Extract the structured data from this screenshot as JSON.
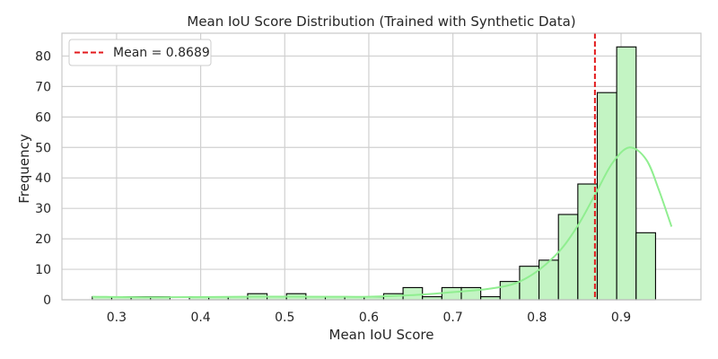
{
  "chart_data": {
    "type": "bar",
    "title": "Mean IoU Score Distribution (Trained with Synthetic Data)",
    "xlabel": "Mean IoU Score",
    "ylabel": "Frequency",
    "xlim": [
      0.235,
      0.995
    ],
    "ylim": [
      0,
      87.5
    ],
    "x_ticks": [
      0.3,
      0.4,
      0.5,
      0.6,
      0.7,
      0.8,
      0.9
    ],
    "y_ticks": [
      0,
      10,
      20,
      30,
      40,
      50,
      60,
      70,
      80
    ],
    "grid": true,
    "legend_position": "top-left",
    "bins": {
      "start": 0.2711,
      "width": 0.0231,
      "counts": [
        1,
        1,
        1,
        1,
        0,
        1,
        1,
        1,
        2,
        1,
        2,
        1,
        1,
        1,
        1,
        2,
        4,
        1,
        4,
        4,
        1,
        6,
        11,
        13,
        28,
        38,
        68,
        83,
        22
      ]
    },
    "kde": {
      "x": [
        0.271,
        0.35,
        0.45,
        0.55,
        0.6,
        0.65,
        0.7,
        0.74,
        0.77,
        0.79,
        0.81,
        0.83,
        0.85,
        0.87,
        0.89,
        0.91,
        0.93,
        0.945,
        0.96
      ],
      "y": [
        1,
        0.8,
        1,
        1,
        1,
        1.5,
        2.5,
        3.5,
        5,
        7.5,
        11.5,
        17,
        25,
        35,
        45,
        50,
        46,
        36,
        24
      ]
    },
    "mean_line": {
      "value": 0.8689,
      "label": "Mean = 0.8689"
    },
    "colors": {
      "bar_fill": "#c3f4c3",
      "bar_edge": "#000000",
      "kde_line": "#90ee90",
      "mean_line": "#e31a1c",
      "grid": "#d0d0d0",
      "frame": "#c8c8c8"
    }
  }
}
